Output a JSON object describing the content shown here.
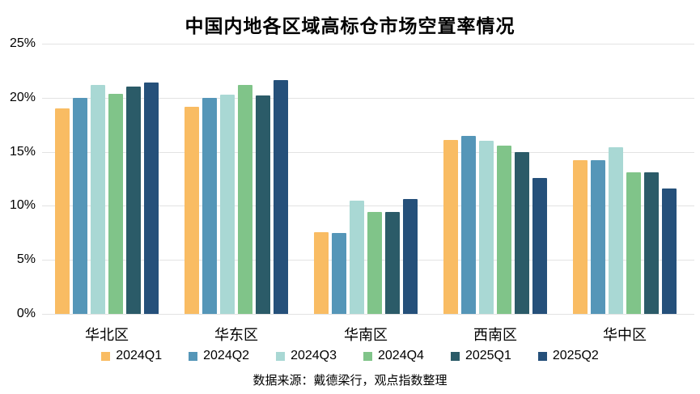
{
  "chart_data": {
    "type": "bar",
    "title": "中国内地各区域高标仓市场空置率情况",
    "source": "数据来源：戴德梁行，观点指数整理",
    "categories": [
      "华北区",
      "华东区",
      "华南区",
      "西南区",
      "华中区"
    ],
    "series": [
      {
        "name": "2024Q1",
        "color": "#F9BC63",
        "values": [
          19.0,
          19.2,
          7.6,
          16.1,
          14.2
        ]
      },
      {
        "name": "2024Q2",
        "color": "#5596B8",
        "values": [
          20.0,
          20.0,
          7.5,
          16.5,
          14.2
        ]
      },
      {
        "name": "2024Q3",
        "color": "#A9D8D4",
        "values": [
          21.2,
          20.3,
          10.5,
          16.0,
          15.4
        ]
      },
      {
        "name": "2024Q4",
        "color": "#80C489",
        "values": [
          20.4,
          21.2,
          9.4,
          15.6,
          13.1
        ]
      },
      {
        "name": "2025Q1",
        "color": "#2B5B68",
        "values": [
          21.0,
          20.2,
          9.4,
          15.0,
          13.1
        ]
      },
      {
        "name": "2025Q2",
        "color": "#25507A",
        "values": [
          21.4,
          21.6,
          10.6,
          12.6,
          11.6
        ]
      }
    ],
    "y_ticks": [
      "25%",
      "20%",
      "15%",
      "10%",
      "5%",
      "0%"
    ],
    "ylim": [
      0,
      25
    ],
    "grid": true,
    "legend_position": "bottom",
    "unit": "%"
  }
}
